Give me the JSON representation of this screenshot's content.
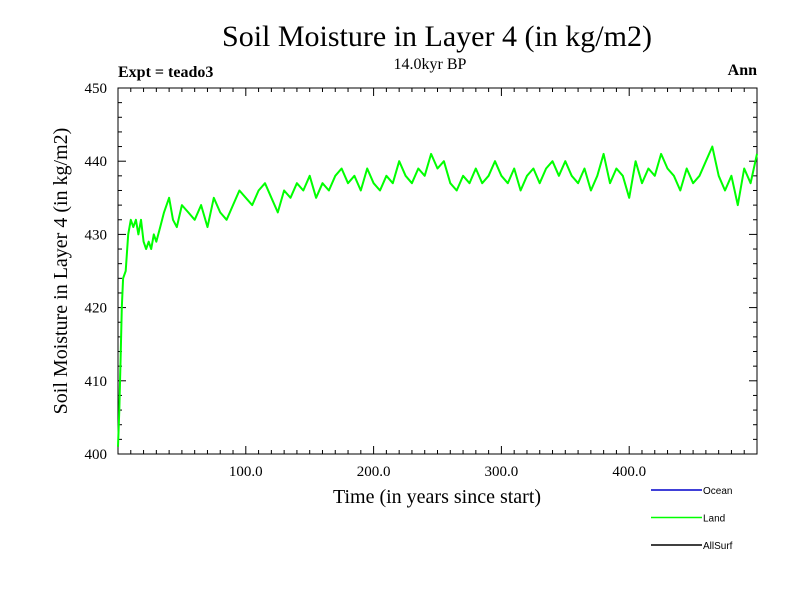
{
  "header": {
    "title": "Soil Moisture in Layer 4 (in kg/m2)",
    "subtitle": "14.0kyr BP",
    "experiment": "Expt = teado3",
    "season": "Ann"
  },
  "chart_data": {
    "type": "line",
    "title": "Soil Moisture in Layer 4 (in kg/m2)",
    "subtitle": "14.0kyr BP",
    "xlabel": "Time (in years since start)",
    "ylabel": "Soil Moisture in Layer 4 (in kg/m2)",
    "xlim": [
      0,
      500
    ],
    "ylim": [
      400,
      450
    ],
    "x_ticks": [
      100,
      200,
      300,
      400
    ],
    "x_tick_labels": [
      "100.0",
      "200.0",
      "300.0",
      "400.0"
    ],
    "y_ticks": [
      400,
      410,
      420,
      430,
      440,
      450
    ],
    "y_tick_labels": [
      "400",
      "410",
      "420",
      "430",
      "440",
      "450"
    ],
    "grid": false,
    "legend_position": "bottom-right",
    "legend": [
      {
        "name": "Ocean",
        "color": "#0000cc"
      },
      {
        "name": "Land",
        "color": "#00ff00"
      },
      {
        "name": "AllSurf",
        "color": "#000000"
      }
    ],
    "series": [
      {
        "name": "Land",
        "color": "#00ff00",
        "x": [
          0,
          1,
          2,
          3,
          4,
          6,
          8,
          10,
          12,
          14,
          16,
          18,
          20,
          22,
          24,
          26,
          28,
          30,
          33,
          36,
          40,
          43,
          46,
          50,
          55,
          60,
          65,
          70,
          75,
          80,
          85,
          90,
          95,
          100,
          105,
          110,
          115,
          120,
          125,
          130,
          135,
          140,
          145,
          150,
          155,
          160,
          165,
          170,
          175,
          180,
          185,
          190,
          195,
          200,
          205,
          210,
          215,
          220,
          225,
          230,
          235,
          240,
          245,
          250,
          255,
          260,
          265,
          270,
          275,
          280,
          285,
          290,
          295,
          300,
          305,
          310,
          315,
          320,
          325,
          330,
          335,
          340,
          345,
          350,
          355,
          360,
          365,
          370,
          375,
          380,
          385,
          390,
          395,
          400,
          405,
          410,
          415,
          420,
          425,
          430,
          435,
          440,
          445,
          450,
          455,
          460,
          465,
          470,
          475,
          480,
          485,
          490,
          495,
          500
        ],
        "values": [
          401,
          406,
          413,
          420,
          424,
          425,
          430,
          432,
          431,
          432,
          430,
          432,
          429,
          428,
          429,
          428,
          430,
          429,
          431,
          433,
          435,
          432,
          431,
          434,
          433,
          432,
          434,
          431,
          435,
          433,
          432,
          434,
          436,
          435,
          434,
          436,
          437,
          435,
          433,
          436,
          435,
          437,
          436,
          438,
          435,
          437,
          436,
          438,
          439,
          437,
          438,
          436,
          439,
          437,
          436,
          438,
          437,
          440,
          438,
          437,
          439,
          438,
          441,
          439,
          440,
          437,
          436,
          438,
          437,
          439,
          437,
          438,
          440,
          438,
          437,
          439,
          436,
          438,
          439,
          437,
          439,
          440,
          438,
          440,
          438,
          437,
          439,
          436,
          438,
          441,
          437,
          439,
          438,
          435,
          440,
          437,
          439,
          438,
          441,
          439,
          438,
          436,
          439,
          437,
          438,
          440,
          442,
          438,
          436,
          438,
          434,
          439,
          437,
          441
        ]
      },
      {
        "name": "Ocean",
        "color": "#0000cc",
        "x": [],
        "values": []
      },
      {
        "name": "AllSurf",
        "color": "#000000",
        "x": [],
        "values": []
      }
    ]
  }
}
